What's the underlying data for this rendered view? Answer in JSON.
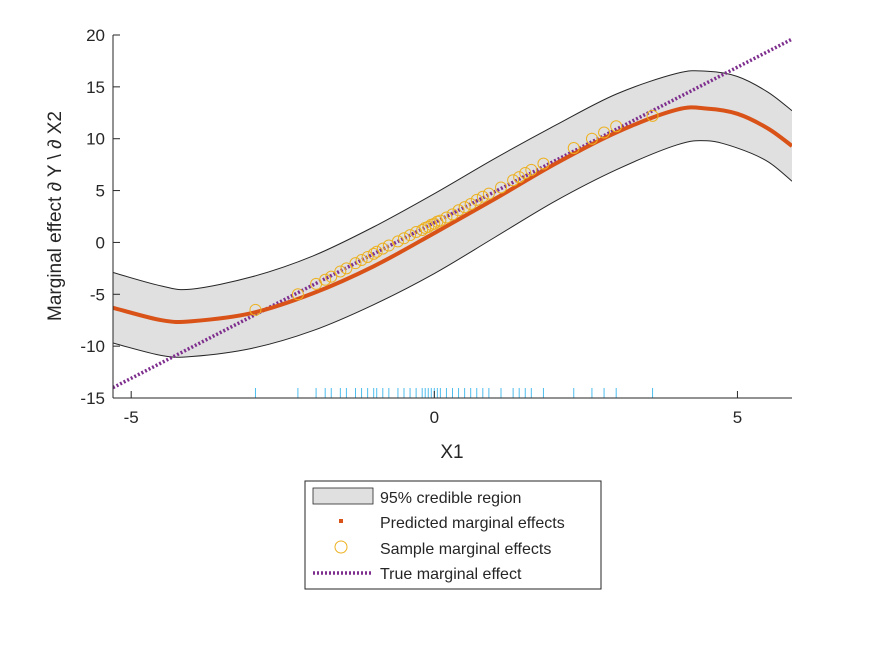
{
  "chart_data": {
    "type": "line",
    "xlabel": "X1",
    "ylabel": "Marginal effect ∂ Y \\ ∂ X2",
    "xlim": [
      -5.3,
      5.9
    ],
    "ylim": [
      -15,
      20
    ],
    "xticks": [
      -5,
      0,
      5
    ],
    "yticks": [
      -15,
      -10,
      -5,
      0,
      5,
      10,
      15,
      20
    ],
    "grid": false,
    "legend_position": "bottom-center",
    "series": [
      {
        "name": "95% credible region",
        "kind": "band",
        "color": "#e0e0e0",
        "x": [
          -5.3,
          -4.5,
          -4.0,
          -3.0,
          -2.0,
          -1.0,
          0.0,
          1.0,
          2.0,
          3.0,
          4.0,
          4.5,
          5.0,
          5.5,
          5.9
        ],
        "lower": [
          -9.7,
          -10.9,
          -11.0,
          -10.2,
          -8.5,
          -6.0,
          -3.0,
          0.5,
          4.0,
          7.0,
          9.4,
          9.8,
          9.1,
          7.8,
          5.9
        ],
        "upper": [
          -2.9,
          -4.2,
          -4.5,
          -3.3,
          -1.3,
          1.5,
          4.7,
          8.1,
          11.3,
          14.3,
          16.3,
          16.5,
          16.0,
          14.5,
          12.7
        ]
      },
      {
        "name": "Predicted marginal effects",
        "kind": "line",
        "color": "#d95319",
        "x": [
          -5.3,
          -4.5,
          -4.0,
          -3.0,
          -2.0,
          -1.0,
          0.0,
          1.0,
          2.0,
          3.0,
          4.0,
          4.5,
          5.0,
          5.5,
          5.9
        ],
        "y": [
          -6.3,
          -7.5,
          -7.6,
          -6.8,
          -4.9,
          -2.3,
          0.9,
          4.2,
          7.6,
          10.6,
          12.8,
          12.9,
          12.4,
          11.0,
          9.3
        ]
      },
      {
        "name": "Sample marginal effects",
        "kind": "scatter",
        "color": "#edb120",
        "x": [
          -2.95,
          -2.25,
          -1.95,
          -1.8,
          -1.7,
          -1.55,
          -1.45,
          -1.3,
          -1.2,
          -1.1,
          -1.0,
          -0.95,
          -0.85,
          -0.75,
          -0.6,
          -0.5,
          -0.4,
          -0.3,
          -0.2,
          -0.15,
          -0.1,
          -0.05,
          0.0,
          0.05,
          0.1,
          0.2,
          0.3,
          0.4,
          0.5,
          0.6,
          0.7,
          0.8,
          0.9,
          1.1,
          1.3,
          1.4,
          1.5,
          1.6,
          1.8,
          2.3,
          2.6,
          2.8,
          3.0,
          3.6
        ],
        "y": [
          -6.5,
          -5.0,
          -4.0,
          -3.6,
          -3.3,
          -2.8,
          -2.5,
          -2.0,
          -1.7,
          -1.4,
          -1.1,
          -0.9,
          -0.6,
          -0.3,
          0.1,
          0.4,
          0.7,
          1.0,
          1.2,
          1.4,
          1.5,
          1.7,
          1.8,
          2.0,
          2.1,
          2.4,
          2.7,
          3.1,
          3.4,
          3.7,
          4.1,
          4.4,
          4.7,
          5.3,
          6.0,
          6.3,
          6.7,
          7.0,
          7.6,
          9.1,
          10.0,
          10.6,
          11.2,
          12.2
        ]
      },
      {
        "name": "True marginal effect",
        "kind": "line",
        "style": "dotted",
        "color": "#7e2f8e",
        "x": [
          -5.3,
          5.9
        ],
        "y": [
          -14.0,
          19.6
        ]
      }
    ],
    "rug": {
      "color": "#4dbeee",
      "x": [
        -2.95,
        -2.25,
        -1.95,
        -1.8,
        -1.7,
        -1.55,
        -1.45,
        -1.3,
        -1.2,
        -1.1,
        -1.0,
        -0.95,
        -0.85,
        -0.75,
        -0.6,
        -0.5,
        -0.4,
        -0.3,
        -0.2,
        -0.15,
        -0.1,
        -0.05,
        0.0,
        0.05,
        0.1,
        0.2,
        0.3,
        0.4,
        0.5,
        0.6,
        0.7,
        0.8,
        0.9,
        1.1,
        1.3,
        1.4,
        1.5,
        1.6,
        1.8,
        2.3,
        2.6,
        2.8,
        3.0,
        3.6
      ]
    }
  }
}
